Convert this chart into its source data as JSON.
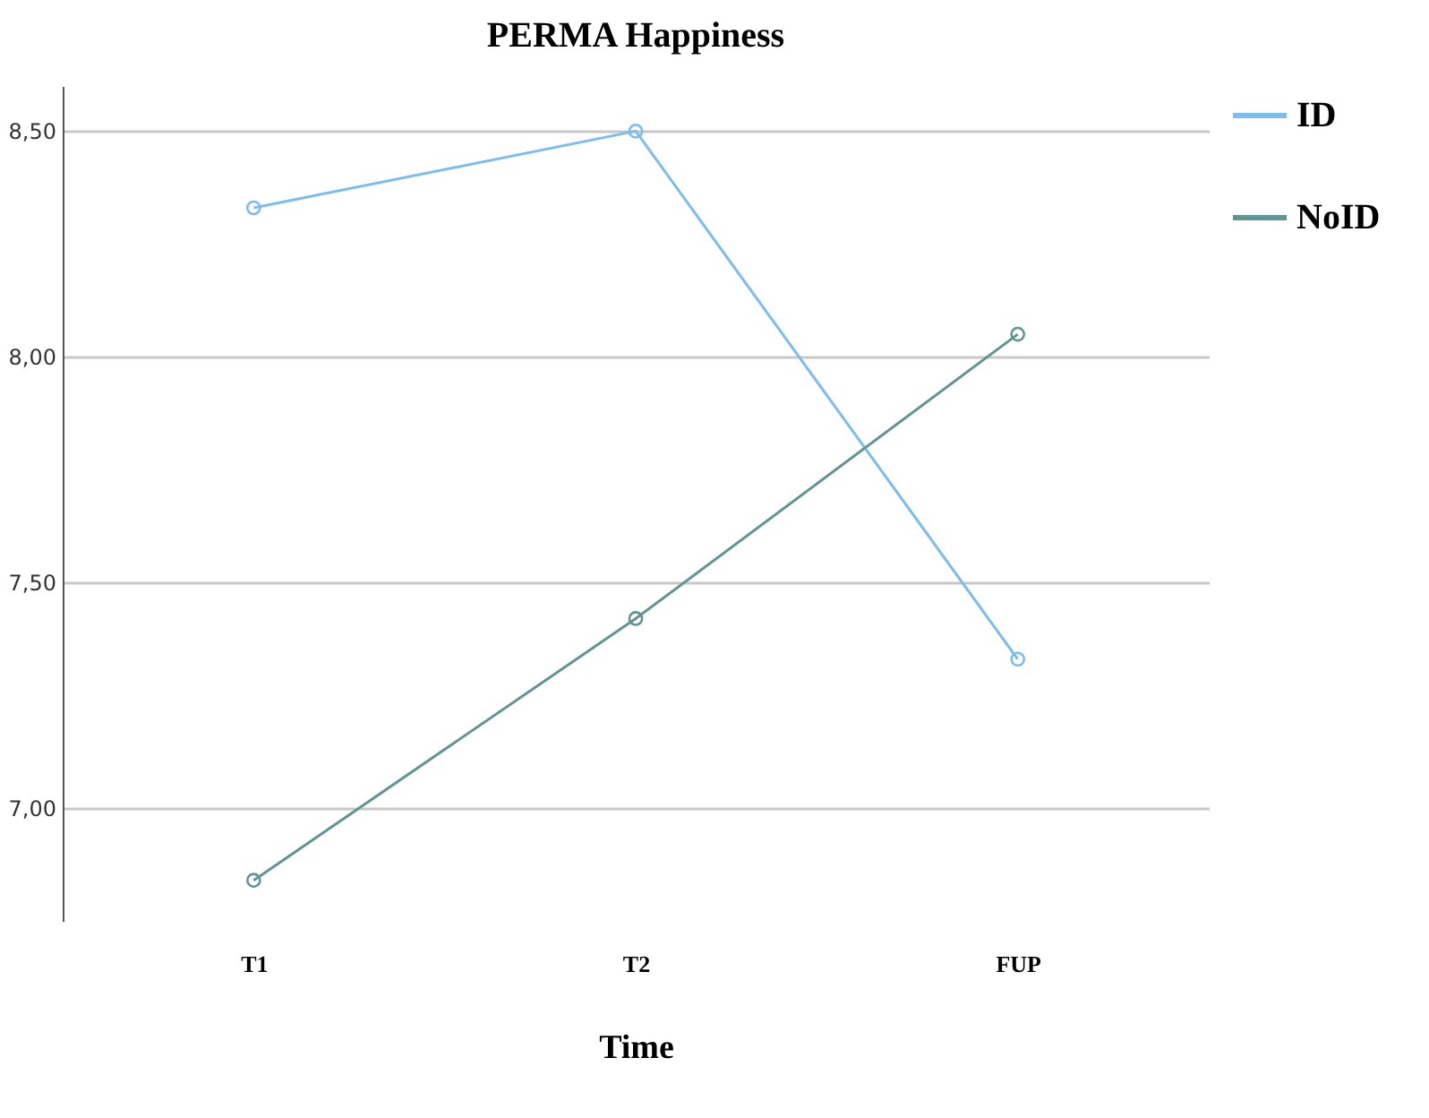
{
  "chart_data": {
    "type": "line",
    "title": "PERMA Happiness",
    "xlabel": "Time",
    "categories": [
      "T1",
      "T2",
      "FUP"
    ],
    "series": [
      {
        "name": "ID",
        "color": "#7abdee",
        "values": [
          8.33,
          8.5,
          7.33
        ]
      },
      {
        "name": "NoID",
        "color": "#5f9693",
        "values": [
          6.84,
          7.42,
          8.05
        ]
      }
    ],
    "ylim": [
      6.75,
      8.6
    ],
    "yticks": [
      {
        "value": 7,
        "label": "7,00"
      },
      {
        "value": 7.5,
        "label": "7,50"
      },
      {
        "value": 8,
        "label": "8,00"
      },
      {
        "value": 8.5,
        "label": "8,50"
      }
    ],
    "grid": "y",
    "legend": "right",
    "marker": "circle",
    "line_style": "solid"
  }
}
